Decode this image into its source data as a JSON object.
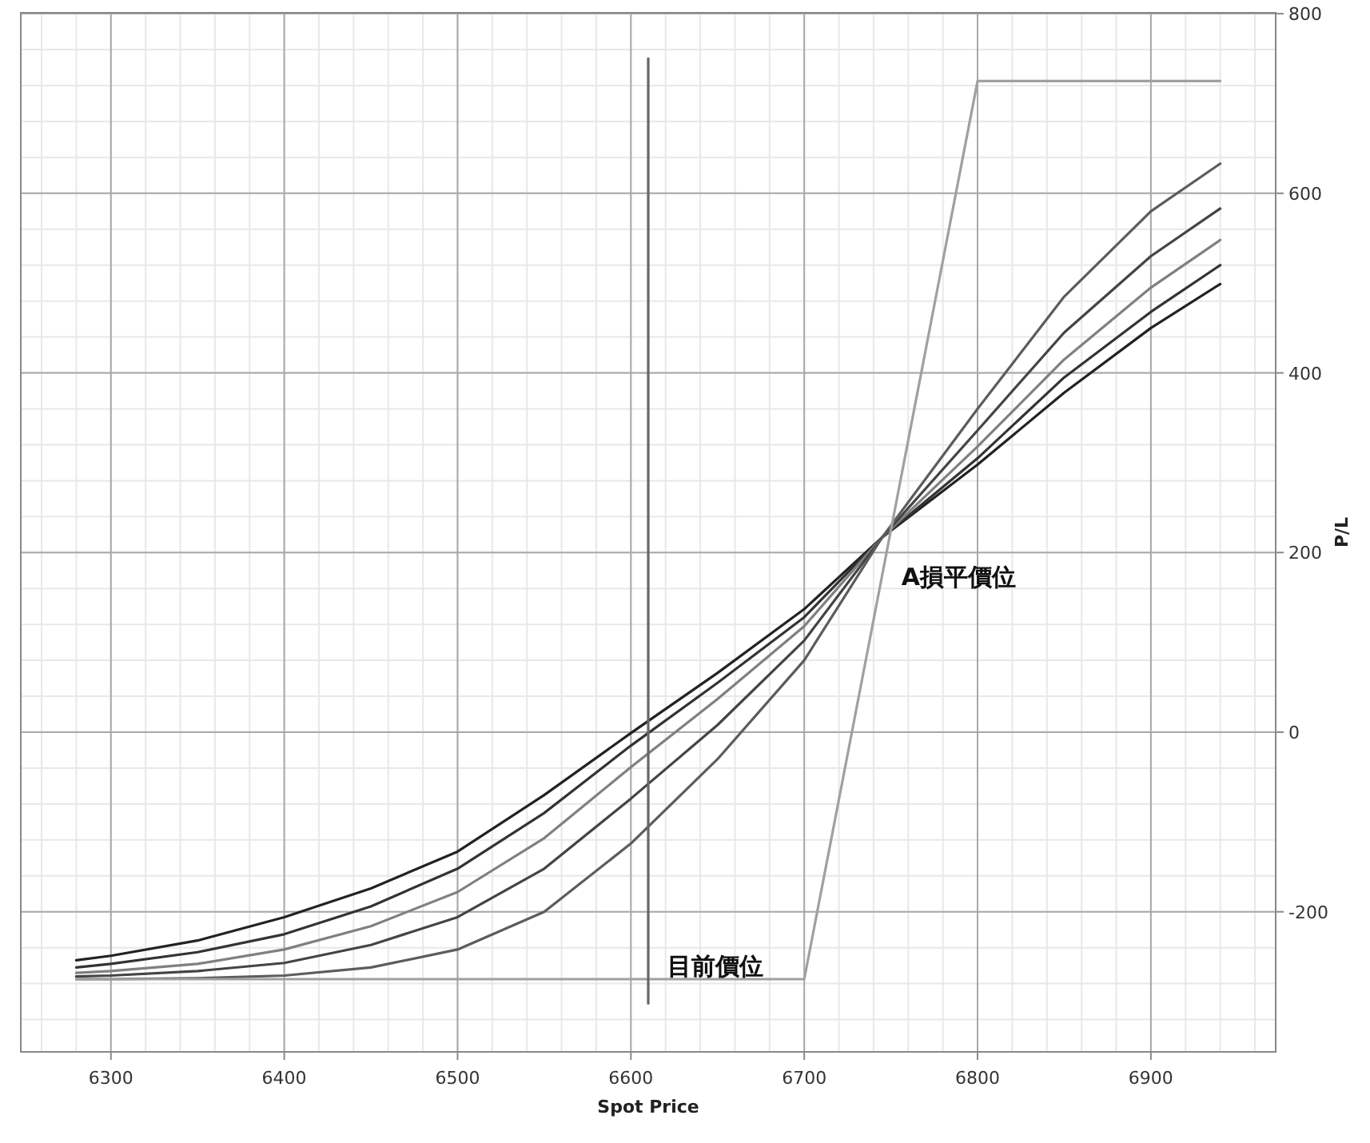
{
  "chart_data": {
    "type": "line",
    "xlabel": "Spot Price",
    "ylabel": "P/L",
    "xlim": [
      6248,
      6972
    ],
    "ylim": [
      -356,
      801
    ],
    "xticks": [
      6300,
      6400,
      6500,
      6600,
      6700,
      6800,
      6900
    ],
    "yticks": [
      -200,
      0,
      200,
      400,
      600,
      800
    ],
    "grid": true,
    "marker": "none",
    "line_style": "solid",
    "series": [
      {
        "color": "#222222",
        "x": [
          6280,
          6300,
          6350,
          6400,
          6450,
          6500,
          6550,
          6600,
          6650,
          6700,
          6745,
          6800,
          6850,
          6900,
          6940
        ],
        "values": [
          -254,
          -249,
          -232,
          -206,
          -174,
          -133,
          -70,
          -1,
          66,
          137,
          217,
          298,
          378,
          450,
          499
        ]
      },
      {
        "color": "#333333",
        "x": [
          6280,
          6300,
          6350,
          6400,
          6450,
          6500,
          6550,
          6600,
          6650,
          6700,
          6745,
          6800,
          6850,
          6900,
          6940
        ],
        "values": [
          -262,
          -258,
          -245,
          -225,
          -194,
          -152,
          -90,
          -15,
          55,
          128,
          217,
          305,
          395,
          468,
          520
        ]
      },
      {
        "color": "#808080",
        "x": [
          6280,
          6300,
          6350,
          6400,
          6450,
          6500,
          6550,
          6600,
          6650,
          6700,
          6745,
          6800,
          6850,
          6900,
          6940
        ],
        "values": [
          -268,
          -266,
          -258,
          -242,
          -216,
          -178,
          -118,
          -39,
          37,
          118,
          217,
          318,
          415,
          495,
          548
        ]
      },
      {
        "color": "#444444",
        "x": [
          6280,
          6300,
          6350,
          6400,
          6450,
          6500,
          6550,
          6600,
          6650,
          6700,
          6745,
          6800,
          6850,
          6900,
          6940
        ],
        "values": [
          -272,
          -271,
          -266,
          -257,
          -237,
          -206,
          -152,
          -74,
          8,
          102,
          217,
          336,
          445,
          530,
          583
        ]
      },
      {
        "color": "#5c5c5c",
        "x": [
          6280,
          6300,
          6350,
          6400,
          6450,
          6500,
          6550,
          6600,
          6650,
          6700,
          6745,
          6800,
          6850,
          6900,
          6940
        ],
        "values": [
          -275,
          -275,
          -274,
          -271,
          -262,
          -242,
          -200,
          -124,
          -30,
          80,
          217,
          360,
          485,
          580,
          633
        ]
      },
      {
        "color": "#a0a0a0",
        "x": [
          6280,
          6700,
          6800,
          6940
        ],
        "values": [
          -275,
          -275,
          725,
          725
        ]
      },
      {
        "color": "#666666",
        "x": [
          6610,
          6610
        ],
        "values": [
          750,
          -302
        ]
      }
    ],
    "annotations": [
      {
        "text": "A損平價位",
        "x": 6745,
        "y": 217
      },
      {
        "text": "目前價位",
        "x": 6610,
        "y": -216
      }
    ]
  }
}
